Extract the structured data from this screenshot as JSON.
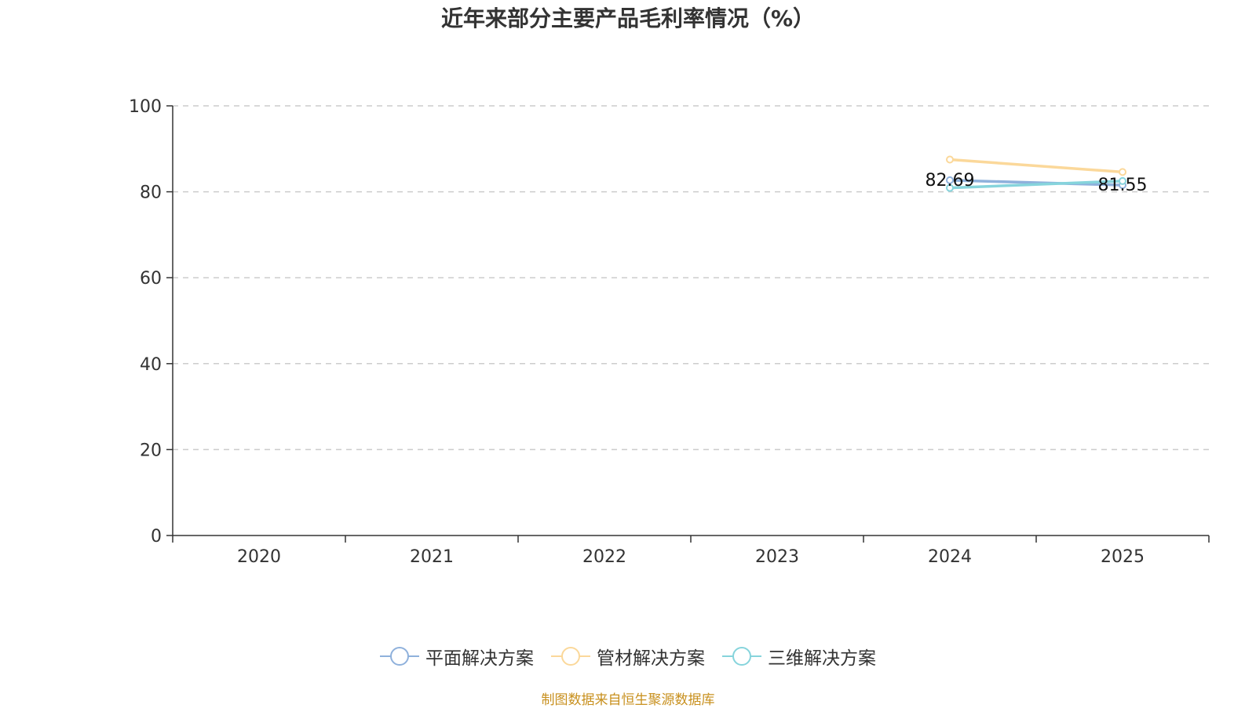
{
  "chart_data": {
    "type": "line",
    "title": "近年来部分主要产品毛利率情况（%）",
    "categories": [
      "2020",
      "2021",
      "2022",
      "2023",
      "2024",
      "2025"
    ],
    "ylim": [
      0,
      100
    ],
    "yticks": [
      "0",
      "20",
      "40",
      "60",
      "80",
      "100"
    ],
    "grid": true,
    "legend_position": "bottom",
    "series": [
      {
        "name": "平面解决方案",
        "color": "#8fb1dc",
        "values": [
          null,
          null,
          null,
          null,
          82.69,
          81.55
        ],
        "labels": [
          "",
          "",
          "",
          "",
          "82.69",
          "81.55"
        ]
      },
      {
        "name": "管材解决方案",
        "color": "#fbd89a",
        "values": [
          null,
          null,
          null,
          null,
          87.5,
          84.6
        ],
        "labels": [
          "",
          "",
          "",
          "",
          "",
          ""
        ]
      },
      {
        "name": "三维解决方案",
        "color": "#86d4dc",
        "values": [
          null,
          null,
          null,
          null,
          80.9,
          82.5
        ],
        "labels": [
          "",
          "",
          "",
          "",
          "",
          ""
        ]
      }
    ]
  },
  "source_note": "制图数据来自恒生聚源数据库"
}
